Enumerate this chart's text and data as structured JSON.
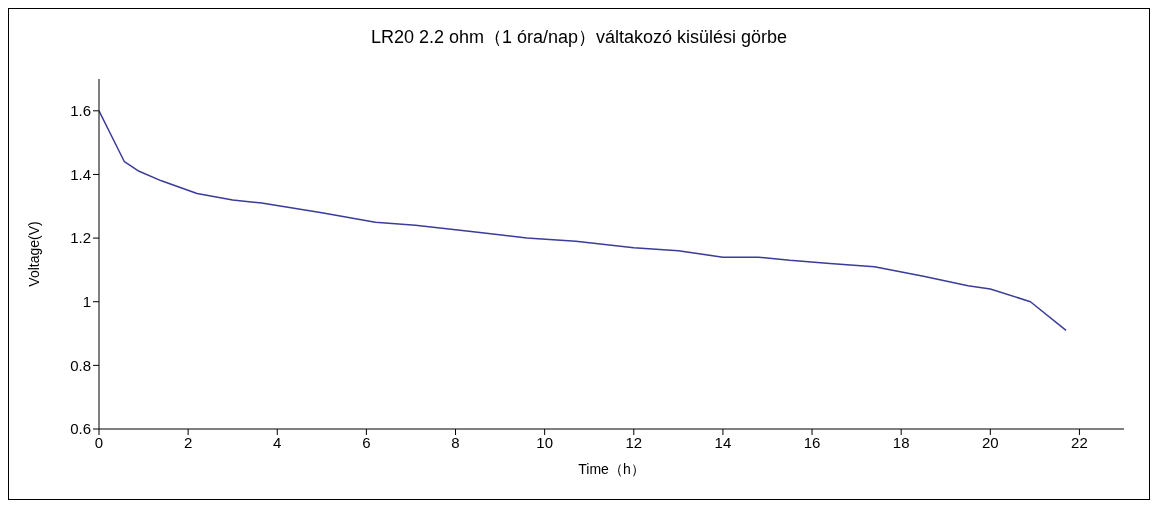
{
  "chart_data": {
    "type": "line",
    "title": "LR20 2.2 ohm（1 óra/nap）váltakozó kisülési görbe",
    "xlabel": "Time（h）",
    "ylabel": "Voltage(V)",
    "x": [
      0,
      0.57,
      0.9,
      1.4,
      2.2,
      3,
      3.65,
      5,
      6.2,
      7.1,
      8.4,
      9.6,
      10.7,
      12,
      13,
      14,
      14.8,
      15.5,
      16.4,
      17.4,
      18.5,
      19.5,
      20,
      20.9,
      21.7
    ],
    "series": [
      {
        "color": "#3b3b9a",
        "values": [
          1.6,
          1.44,
          1.41,
          1.38,
          1.34,
          1.32,
          1.31,
          1.28,
          1.25,
          1.24,
          1.22,
          1.2,
          1.19,
          1.17,
          1.16,
          1.14,
          1.14,
          1.13,
          1.12,
          1.11,
          1.08,
          1.05,
          1.04,
          1.0,
          0.91
        ]
      }
    ],
    "xlim": [
      0,
      23
    ],
    "xticks": [
      0,
      2,
      4,
      6,
      8,
      10,
      12,
      14,
      16,
      18,
      20,
      22
    ],
    "ylim": [
      0.6,
      1.7
    ],
    "yticks": [
      0.6,
      0.8,
      1,
      1.2,
      1.4,
      1.6
    ],
    "grid": false,
    "legend": false,
    "marker": "none",
    "line_style": "solid"
  }
}
